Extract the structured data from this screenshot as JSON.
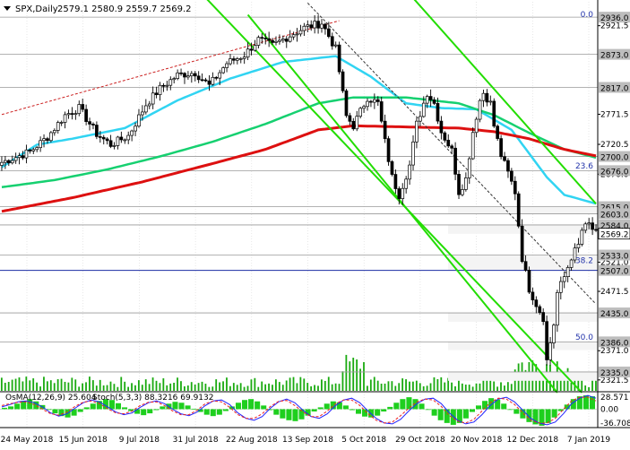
{
  "colors": {
    "background": "#ffffff",
    "candle": "#000000",
    "grid": "#d8d8d8",
    "axis": "#000000",
    "ema50": "#31d4f2",
    "ema144": "#16d070",
    "ema200": "#dd1010",
    "channel": "#22dd00",
    "dashed_channel": "#cc2222",
    "dark_line": "#333333",
    "level_box": "#bdbdbd",
    "volume": "#1aaa10",
    "histogram": "#1ecf1e",
    "osma_line": "#2222ff",
    "stoch_signal": "#ee2222",
    "fibo": "#2233aa"
  },
  "chart_data": [
    {
      "type": "candlestick",
      "title": "SPX,Daily",
      "ohlc_label": "2579.1 2580.9 2559.7 2569.2",
      "ylim": [
        2303,
        2962
      ],
      "price_ticks": [
        "2921.5",
        "2771.5",
        "2720.5",
        "2670.0",
        "2521.0",
        "2471.5",
        "2371.0",
        "2321.5"
      ],
      "price_levels": [
        {
          "label": "2936.0",
          "value": 2936.0
        },
        {
          "label": "2873.0",
          "value": 2873.0
        },
        {
          "label": "2817.0",
          "value": 2817.0
        },
        {
          "label": "2700.0",
          "value": 2700.0
        },
        {
          "label": "2676.0",
          "value": 2676.0
        },
        {
          "label": "2615.0",
          "value": 2615.0
        },
        {
          "label": "2603.0",
          "value": 2603.0
        },
        {
          "label": "2584.0",
          "value": 2584.0
        },
        {
          "label": "2533.0",
          "value": 2533.0
        },
        {
          "label": "2507.0",
          "value": 2507.0
        },
        {
          "label": "2435.0",
          "value": 2435.0
        },
        {
          "label": "2386.0",
          "value": 2386.0
        },
        {
          "label": "2335.0",
          "value": 2335.0
        }
      ],
      "current_price": {
        "label": "2569.2",
        "value": 2569.2
      },
      "fibonacci": [
        {
          "label": "0.0",
          "value": 2941
        },
        {
          "label": "23.6",
          "value": 2684
        },
        {
          "label": "38.2",
          "value": 2524
        },
        {
          "label": "50.0",
          "value": 2394
        }
      ],
      "date_labels": [
        "24 May 2018",
        "15 Jun 2018",
        "9 Jul 2018",
        "31 Jul 2018",
        "22 Aug 2018",
        "13 Sep 2018",
        "5 Oct 2018",
        "29 Oct 2018",
        "20 Nov 2018",
        "12 Dec 2018",
        "7 Jan 2019"
      ],
      "anchors": [
        [
          0,
          2690
        ],
        [
          8,
          2708
        ],
        [
          13,
          2733
        ],
        [
          18,
          2770
        ],
        [
          22,
          2782
        ],
        [
          27,
          2738
        ],
        [
          31,
          2720
        ],
        [
          36,
          2735
        ],
        [
          41,
          2788
        ],
        [
          45,
          2815
        ],
        [
          50,
          2838
        ],
        [
          55,
          2842
        ],
        [
          59,
          2820
        ],
        [
          64,
          2858
        ],
        [
          69,
          2872
        ],
        [
          73,
          2898
        ],
        [
          77,
          2888
        ],
        [
          82,
          2905
        ],
        [
          86,
          2918
        ],
        [
          91,
          2926
        ],
        [
          95,
          2882
        ],
        [
          98,
          2768
        ],
        [
          100,
          2752
        ],
        [
          104,
          2800
        ],
        [
          107,
          2790
        ],
        [
          109,
          2725
        ],
        [
          111,
          2665
        ],
        [
          113,
          2635
        ],
        [
          116,
          2685
        ],
        [
          118,
          2755
        ],
        [
          121,
          2808
        ],
        [
          123,
          2790
        ],
        [
          125,
          2742
        ],
        [
          128,
          2710
        ],
        [
          130,
          2640
        ],
        [
          132,
          2662
        ],
        [
          134,
          2742
        ],
        [
          136,
          2795
        ],
        [
          137,
          2808
        ],
        [
          139,
          2790
        ],
        [
          140,
          2752
        ],
        [
          142,
          2702
        ],
        [
          144,
          2672
        ],
        [
          146,
          2640
        ],
        [
          148,
          2528
        ],
        [
          150,
          2476
        ],
        [
          152,
          2450
        ],
        [
          154,
          2427
        ],
        [
          155,
          2354
        ],
        [
          157,
          2416
        ],
        [
          158,
          2469
        ],
        [
          160,
          2496
        ],
        [
          162,
          2530
        ],
        [
          164,
          2549
        ],
        [
          165,
          2575
        ],
        [
          167,
          2585
        ],
        [
          169,
          2569
        ]
      ],
      "sma": [
        {
          "name": "",
          "color": "ema50",
          "width": 2.5,
          "points": [
            [
              0,
              2682
            ],
            [
              10,
              2720
            ],
            [
              20,
              2730
            ],
            [
              35,
              2748
            ],
            [
              50,
              2795
            ],
            [
              65,
              2832
            ],
            [
              80,
              2860
            ],
            [
              95,
              2870
            ],
            [
              105,
              2835
            ],
            [
              115,
              2790
            ],
            [
              125,
              2782
            ],
            [
              135,
              2780
            ],
            [
              145,
              2745
            ],
            [
              155,
              2665
            ],
            [
              160,
              2635
            ],
            [
              169,
              2620
            ]
          ]
        },
        {
          "name": "",
          "color": "ema144",
          "width": 2.5,
          "points": [
            [
              0,
              2648
            ],
            [
              15,
              2660
            ],
            [
              30,
              2678
            ],
            [
              45,
              2700
            ],
            [
              60,
              2725
            ],
            [
              75,
              2755
            ],
            [
              90,
              2790
            ],
            [
              100,
              2800
            ],
            [
              115,
              2800
            ],
            [
              130,
              2790
            ],
            [
              140,
              2770
            ],
            [
              150,
              2740
            ],
            [
              160,
              2712
            ],
            [
              169,
              2698
            ]
          ]
        },
        {
          "name": "",
          "color": "ema200",
          "width": 3,
          "points": [
            [
              0,
              2607
            ],
            [
              20,
              2630
            ],
            [
              40,
              2657
            ],
            [
              60,
              2688
            ],
            [
              75,
              2712
            ],
            [
              90,
              2745
            ],
            [
              100,
              2752
            ],
            [
              115,
              2750
            ],
            [
              130,
              2748
            ],
            [
              140,
              2742
            ],
            [
              150,
              2730
            ],
            [
              160,
              2712
            ],
            [
              169,
              2701
            ]
          ]
        }
      ],
      "lines": [
        {
          "color": "channel",
          "width": 2,
          "dash": "",
          "from": [
            57,
            2975
          ],
          "to": [
            165,
            2300
          ]
        },
        {
          "color": "channel",
          "width": 2,
          "dash": "",
          "from": [
            70,
            2940
          ],
          "to": [
            158,
            2300
          ]
        },
        {
          "color": "channel",
          "width": 2,
          "dash": "",
          "from": [
            116,
            2975
          ],
          "to": [
            169,
            2620
          ]
        },
        {
          "color": "dashed_channel",
          "width": 1,
          "dash": "3,2",
          "from": [
            0,
            2771
          ],
          "to": [
            96,
            2930
          ]
        },
        {
          "color": "dark_line",
          "width": 1,
          "dash": "3,2",
          "from": [
            87,
            2960
          ],
          "to": [
            169,
            2450
          ]
        }
      ]
    },
    {
      "type": "histogram",
      "title": "OsMA(12,26,9) 25.604",
      "stoch_label": "Stoch(5,3,3) 88.3216 69.9132",
      "ylim": [
        -40,
        36
      ],
      "ticks": [
        "28.571",
        "0.00",
        "-36.708"
      ],
      "values": [
        3,
        6,
        12,
        18,
        22,
        17,
        9,
        0,
        -9,
        -15,
        -18,
        -14,
        -6,
        4,
        12,
        18,
        22,
        20,
        13,
        4,
        -4,
        -10,
        -13,
        -9,
        -2,
        6,
        12,
        16,
        14,
        8,
        1,
        -6,
        -12,
        -15,
        -12,
        -4,
        6,
        14,
        20,
        22,
        17,
        8,
        -2,
        -12,
        -20,
        -24,
        -26,
        -22,
        -14,
        -5,
        4,
        12,
        17,
        15,
        8,
        -2,
        -10,
        -16,
        -18,
        -14,
        -5,
        5,
        14,
        22,
        26,
        22,
        12,
        0,
        -14,
        -24,
        -30,
        -34,
        -30,
        -20,
        -6,
        8,
        18,
        24,
        21,
        12,
        0,
        -10,
        -20,
        -28,
        -33,
        -36,
        -30,
        -18,
        -4,
        10,
        22,
        28,
        30,
        28
      ],
      "osma_line": [
        5,
        10,
        16,
        18,
        14,
        5,
        -8,
        -15,
        -10,
        2,
        14,
        20,
        16,
        5,
        -6,
        -12,
        -8,
        4,
        14,
        18,
        12,
        0,
        -10,
        -14,
        -6,
        8,
        18,
        20,
        10,
        -8,
        -20,
        -24,
        -16,
        2,
        16,
        22,
        14,
        -2,
        -16,
        -20,
        -10,
        8,
        20,
        24,
        14,
        -4,
        -20,
        -30,
        -32,
        -22,
        -4,
        12,
        22,
        24,
        12,
        -8,
        -24,
        -32,
        -28,
        -12,
        8,
        22,
        26,
        16,
        -2,
        -20,
        -30,
        -34,
        -28,
        -10,
        12,
        24,
        30,
        24
      ],
      "stoch_signal": [
        8,
        12,
        15,
        16,
        10,
        0,
        -10,
        -13,
        -6,
        6,
        15,
        18,
        12,
        1,
        -8,
        -10,
        -4,
        8,
        15,
        16,
        8,
        -4,
        -12,
        -12,
        -2,
        12,
        18,
        16,
        4,
        -12,
        -20,
        -20,
        -10,
        6,
        17,
        19,
        8,
        -6,
        -16,
        -16,
        -4,
        12,
        20,
        20,
        8,
        -10,
        -24,
        -30,
        -28,
        -14,
        2,
        16,
        22,
        20,
        6,
        -14,
        -26,
        -30,
        -22,
        -4,
        14,
        24,
        22,
        10,
        -8,
        -24,
        -30,
        -30,
        -20,
        0,
        18,
        26,
        26,
        18
      ]
    }
  ]
}
